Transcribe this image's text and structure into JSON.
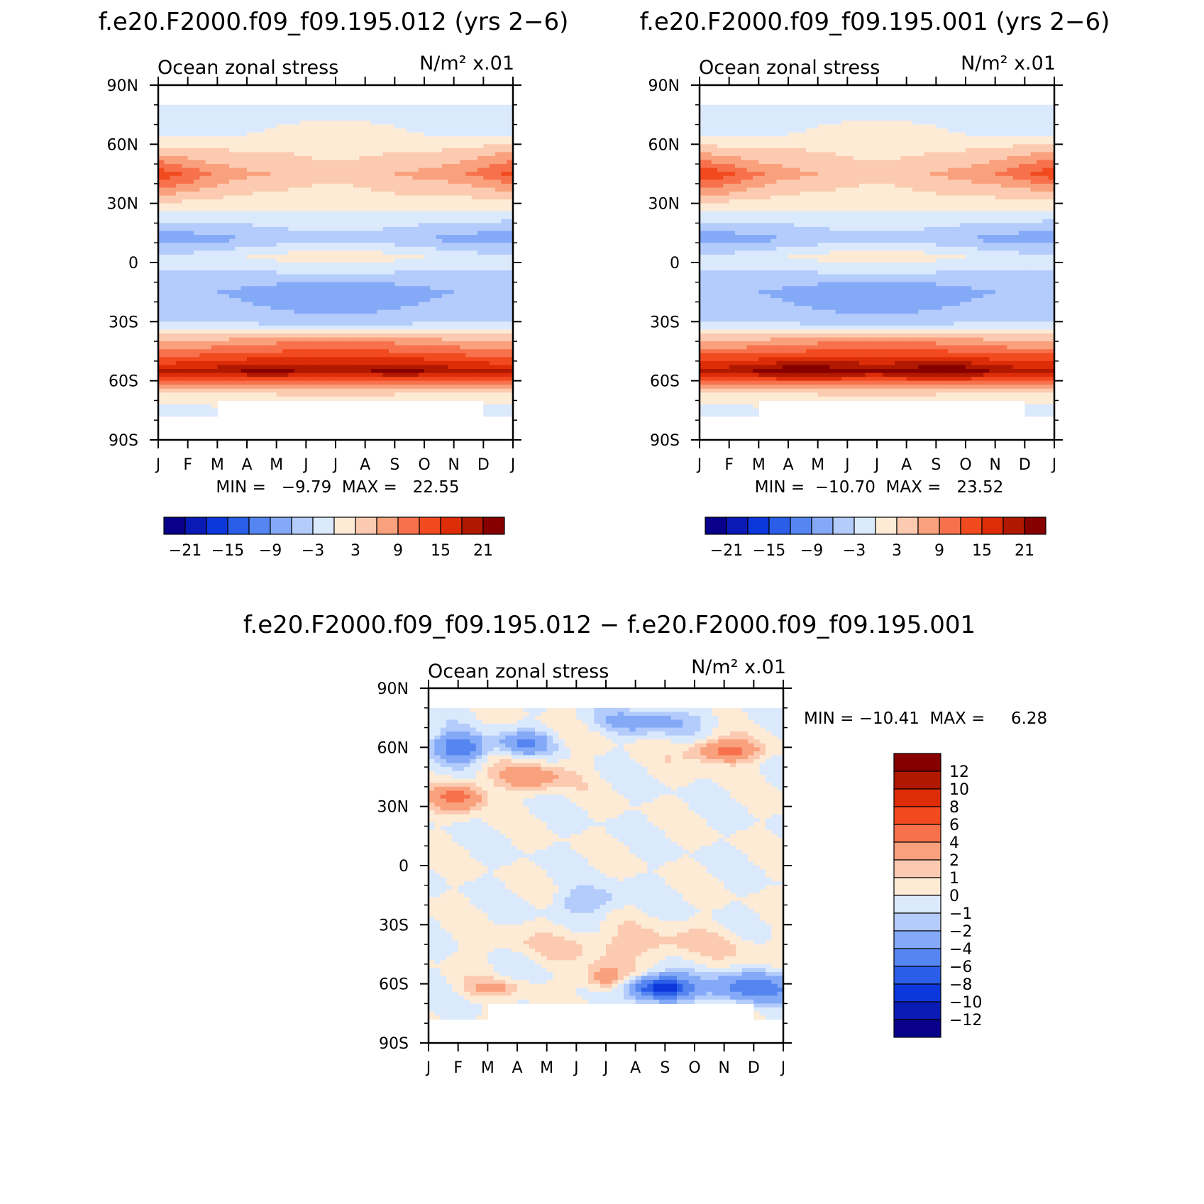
{
  "panels": [
    {
      "title": "f.e20.F2000.f09_f09.195.012 (yrs 2−6)",
      "left_label": "Ocean zonal stress",
      "units_label": "N/m² x.01",
      "stats": "MIN =   −9.79  MAX =   22.55"
    },
    {
      "title": "f.e20.F2000.f09_f09.195.001 (yrs 2−6)",
      "left_label": "Ocean zonal stress",
      "units_label": "N/m² x.01",
      "stats": "MIN =  −10.70  MAX =   23.52"
    },
    {
      "title": "f.e20.F2000.f09_f09.195.012 − f.e20.F2000.f09_f09.195.001",
      "left_label": "Ocean zonal stress",
      "units_label": "N/m² x.01",
      "stats": "MIN = −10.41  MAX =     6.28"
    }
  ],
  "chart_data": [
    {
      "type": "heatmap",
      "title": "f.e20.F2000.f09_f09.195.012 (yrs 2−6)",
      "subtitle_left": "Ocean zonal stress",
      "subtitle_right": "N/m² x.01",
      "x_ticks": [
        "J",
        "F",
        "M",
        "A",
        "M",
        "J",
        "J",
        "A",
        "S",
        "O",
        "N",
        "D",
        "J"
      ],
      "y_ticks": [
        "90N",
        "60N",
        "30N",
        "0",
        "30S",
        "60S",
        "90S"
      ],
      "y_range": [
        -90,
        90
      ],
      "colorbar": {
        "orientation": "horizontal",
        "tick_labels": [
          "−21",
          "−15",
          "−9",
          "−3",
          "3",
          "9",
          "15",
          "21"
        ],
        "levels": [
          -21,
          -18,
          -15,
          -12,
          -9,
          -6,
          -3,
          0,
          3,
          6,
          9,
          12,
          15,
          18,
          21
        ],
        "colors": [
          "#08008a",
          "#0a1bb5",
          "#0c37dc",
          "#2a5ee8",
          "#5585f0",
          "#84a9f7",
          "#b3ccfc",
          "#dbe9fd",
          "#fdebd6",
          "#fccab0",
          "#f9a07d",
          "#f6714c",
          "#f24a1f",
          "#dd2d08",
          "#b11800",
          "#860000"
        ]
      },
      "min": -9.79,
      "max": 22.55,
      "zonal_profile_approx": {
        "lat": [
          80,
          65,
          45,
          30,
          12,
          3,
          -15,
          -30,
          -40,
          -55,
          -65,
          -75
        ],
        "jan": [
          -3,
          -1,
          12,
          2,
          -8,
          -2,
          -5,
          -3,
          6,
          18,
          3,
          -1
        ],
        "jul": [
          -1,
          1,
          4,
          1,
          -4,
          2,
          -9,
          -5,
          9,
          19,
          4,
          0
        ]
      }
    },
    {
      "type": "heatmap",
      "title": "f.e20.F2000.f09_f09.195.001 (yrs 2−6)",
      "subtitle_left": "Ocean zonal stress",
      "subtitle_right": "N/m² x.01",
      "x_ticks": [
        "J",
        "F",
        "M",
        "A",
        "M",
        "J",
        "J",
        "A",
        "S",
        "O",
        "N",
        "D",
        "J"
      ],
      "y_ticks": [
        "90N",
        "60N",
        "30N",
        "0",
        "30S",
        "60S",
        "90S"
      ],
      "y_range": [
        -90,
        90
      ],
      "colorbar": {
        "orientation": "horizontal",
        "tick_labels": [
          "−21",
          "−15",
          "−9",
          "−3",
          "3",
          "9",
          "15",
          "21"
        ],
        "levels": [
          -21,
          -18,
          -15,
          -12,
          -9,
          -6,
          -3,
          0,
          3,
          6,
          9,
          12,
          15,
          18,
          21
        ],
        "colors": [
          "#08008a",
          "#0a1bb5",
          "#0c37dc",
          "#2a5ee8",
          "#5585f0",
          "#84a9f7",
          "#b3ccfc",
          "#dbe9fd",
          "#fdebd6",
          "#fccab0",
          "#f9a07d",
          "#f6714c",
          "#f24a1f",
          "#dd2d08",
          "#b11800",
          "#860000"
        ]
      },
      "min": -10.7,
      "max": 23.52,
      "zonal_profile_approx": {
        "lat": [
          80,
          65,
          45,
          30,
          12,
          3,
          -15,
          -30,
          -40,
          -55,
          -65,
          -75
        ],
        "jan": [
          -3,
          -1,
          13,
          2,
          -8,
          -2,
          -5,
          -3,
          6,
          19,
          3,
          -1
        ],
        "jul": [
          -1,
          1,
          4,
          1,
          -4,
          2,
          -9,
          -5,
          9,
          20,
          4,
          0
        ]
      }
    },
    {
      "type": "heatmap",
      "title": "f.e20.F2000.f09_f09.195.012 − f.e20.F2000.f09_f09.195.001",
      "subtitle_left": "Ocean zonal stress",
      "subtitle_right": "N/m² x.01",
      "x_ticks": [
        "J",
        "F",
        "M",
        "A",
        "M",
        "J",
        "J",
        "A",
        "S",
        "O",
        "N",
        "D",
        "J"
      ],
      "y_ticks": [
        "90N",
        "60N",
        "30N",
        "0",
        "30S",
        "60S",
        "90S"
      ],
      "y_range": [
        -90,
        90
      ],
      "colorbar": {
        "orientation": "vertical",
        "tick_labels": [
          "12",
          "10",
          "8",
          "6",
          "4",
          "2",
          "1",
          "0",
          "−1",
          "−2",
          "−4",
          "−6",
          "−8",
          "−10",
          "−12"
        ],
        "colors": [
          "#860000",
          "#b11800",
          "#dd2d08",
          "#f24a1f",
          "#f6714c",
          "#f9a07d",
          "#fccab0",
          "#fdebd6",
          "#dbe9fd",
          "#b3ccfc",
          "#84a9f7",
          "#5585f0",
          "#2a5ee8",
          "#0c37dc",
          "#0a1bb5",
          "#08008a"
        ]
      },
      "min": -10.41,
      "max": 6.28
    }
  ]
}
